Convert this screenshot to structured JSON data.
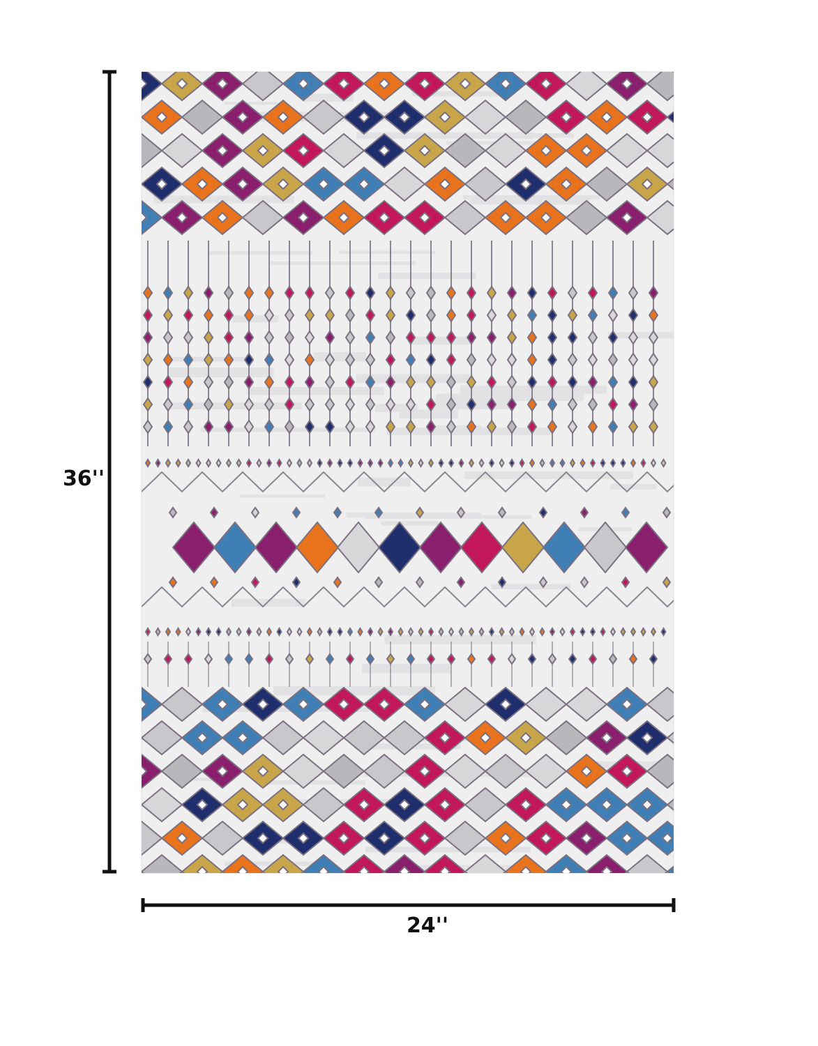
{
  "dimensions": {
    "height": "36''",
    "width": "24''"
  }
}
